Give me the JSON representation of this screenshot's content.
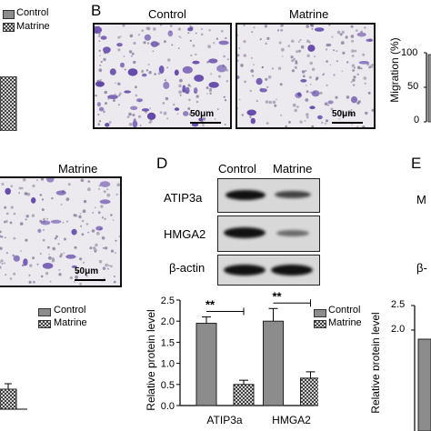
{
  "panels": {
    "B": "B",
    "D": "D",
    "E": "E"
  },
  "legend_top_left": {
    "control": "Control",
    "matrine": "Matrine"
  },
  "panel_b": {
    "label_control": "Control",
    "label_matrine": "Matrine",
    "scale_left": "50μm",
    "scale_right": "50μm",
    "ylabel": "Migration (%)",
    "ticks": [
      "100",
      "50",
      "0"
    ]
  },
  "panel_c": {
    "label_matrine": "Matrine",
    "scale": "50μm"
  },
  "panel_d": {
    "col_control": "Control",
    "col_matrine": "Matrine",
    "rows": [
      "ATIP3a",
      "HMGA2",
      "β-actin"
    ]
  },
  "panel_e_fragments": {
    "row1": "M",
    "row3": "β-",
    "tick_top": "2.5",
    "tick_2": "2.0"
  },
  "legend_d": {
    "control": "Control",
    "matrine": "Matrine"
  },
  "legend_c": {
    "control": "Control",
    "matrine": "Matrine"
  },
  "colors": {
    "control_fill": "#8c8c8c",
    "matrine_pattern": "crosshatch",
    "stain": "#5b3fa6",
    "blot_bg": "#d6d6d6"
  },
  "chart_data": {
    "type": "bar",
    "categories": [
      "ATIP3a",
      "HMGA2"
    ],
    "series": [
      {
        "name": "Control",
        "values": [
          1.95,
          2.0
        ],
        "errors": [
          0.15,
          0.3
        ]
      },
      {
        "name": "Matrine",
        "values": [
          0.5,
          0.65
        ],
        "errors": [
          0.1,
          0.15
        ]
      }
    ],
    "ylabel": "Relative protein level",
    "yticks": [
      "0.0",
      "0.5",
      "1.0",
      "1.5",
      "2.0",
      "2.5"
    ],
    "ylim": [
      0,
      2.5
    ],
    "annotations": [
      "**",
      "**"
    ]
  }
}
